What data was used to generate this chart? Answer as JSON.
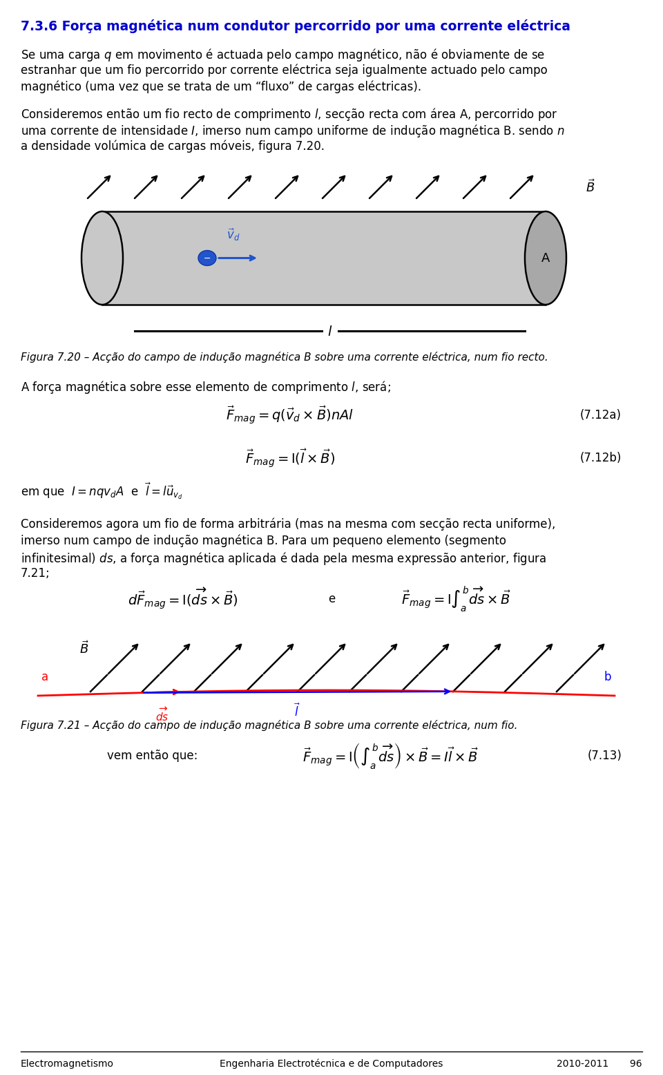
{
  "title": "7.3.6 Força magnética num condutor percorrido por uma corrente eléctrica",
  "title_color": "#0000CC",
  "bg_color": "#FFFFFF",
  "para1_lines": [
    "Se uma carga $q$ em movimento é actuada pelo campo magnético, não é obviamente de se",
    "estranhar que um fio percorrido por corrente eléctrica seja igualmente actuado pelo campo",
    "magnético (uma vez que se trata de um “fluxo” de cargas eléctricas)."
  ],
  "para2_lines": [
    "Consideremos então um fio recto de comprimento $l$, secção recta com área A, percorrido por",
    "uma corrente de intensidade $I$, imerso num campo uniforme de indução magnética B. sendo $n$",
    "a densidade volúmica de cargas móveis, figura 7.20."
  ],
  "fig720_caption": "Figura 7.20 – Acção do campo de indução magnética B sobre uma corrente eléctrica, num fio recto.",
  "para3": "A força magnética sobre esse elemento de comprimento $l$, será;",
  "eq1_label": "(7.12a)",
  "eq2_label": "(7.12b)",
  "para5_lines": [
    "Consideremos agora um fio de forma arbitrária (mas na mesma com secção recta uniforme),",
    "imerso num campo de indução magnética B. Para um pequeno elemento (segmento",
    "infinitesimal) $ds$, a força magnética aplicada é dada pela mesma expressão anterior, figura",
    "7.21;"
  ],
  "fig721_caption": "Figura 7.21 – Acção do campo de indução magnética B sobre uma corrente eléctrica, num fio.",
  "eq5_label": "(7.13)",
  "footer_left": "Electromagnetismo",
  "footer_mid": "Engenharia Electrotécnica e de Computadores",
  "footer_right": "2010-2011       96",
  "fig_width": 9.6,
  "fig_height": 15.56
}
